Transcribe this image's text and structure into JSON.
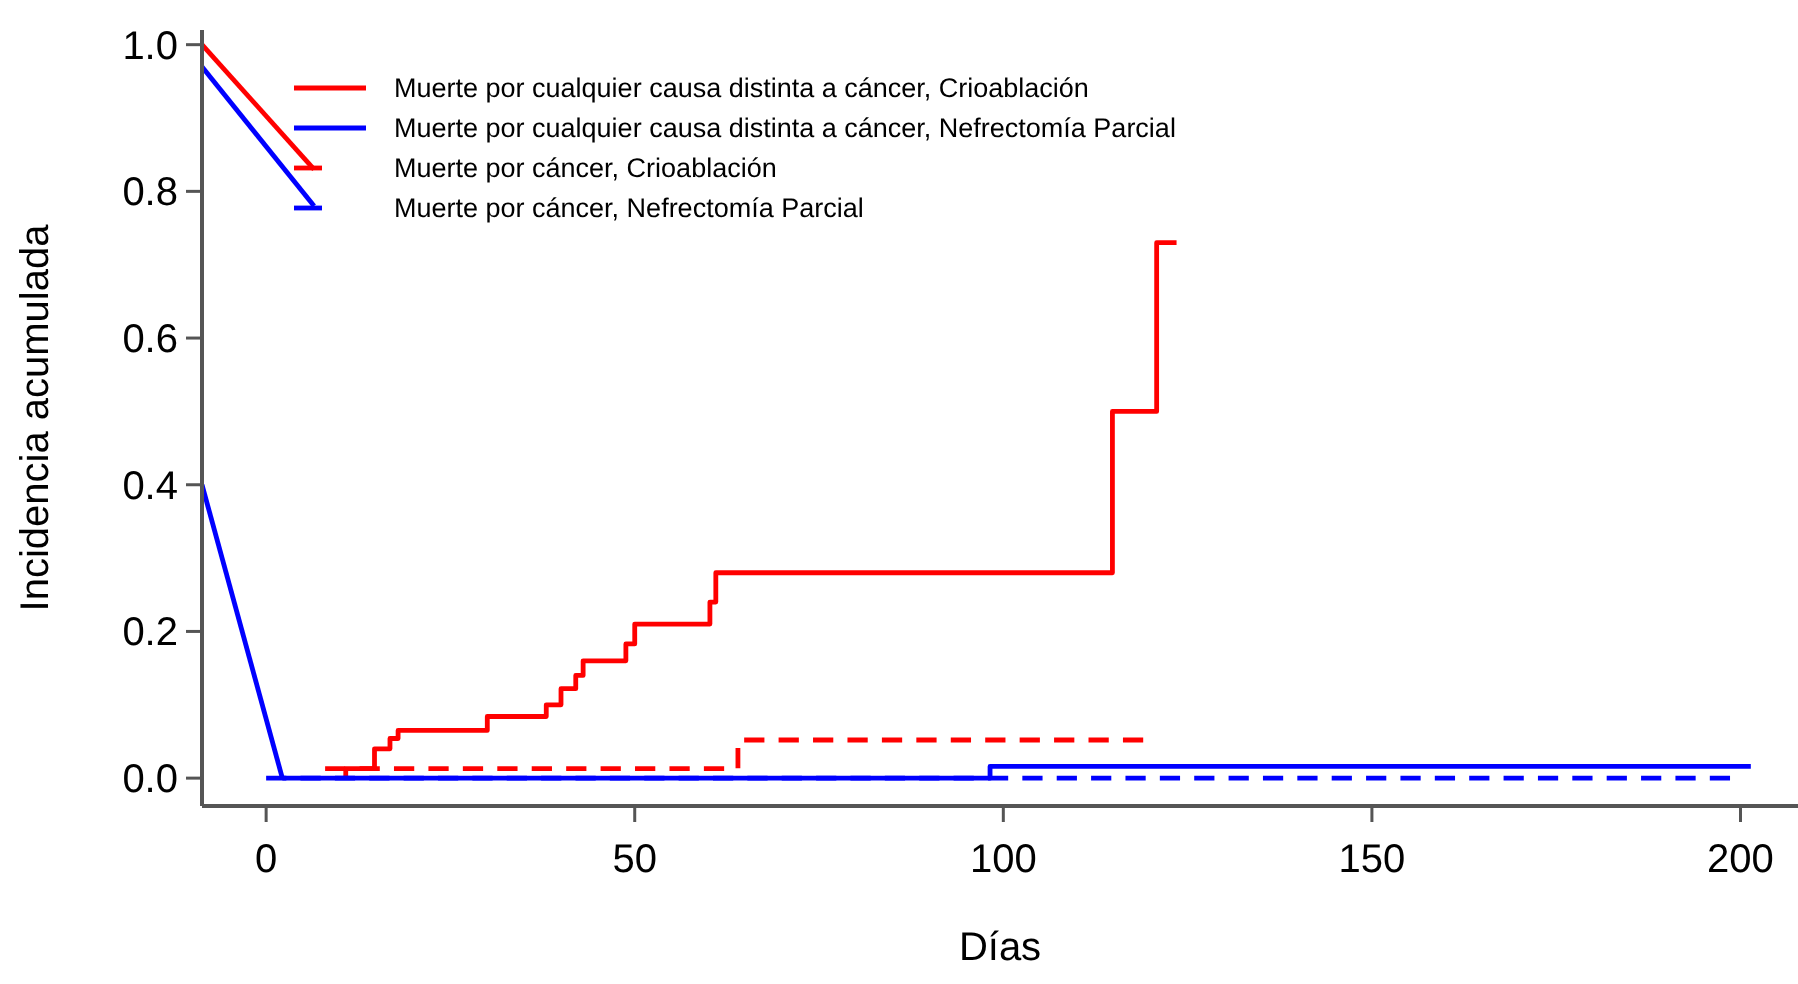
{
  "chart_data": {
    "type": "step",
    "xlabel": "Días",
    "ylabel": "Incidencia acumulada",
    "xlim": [
      -8.7,
      207.8
    ],
    "ylim": [
      -0.038,
      1.02
    ],
    "xticks": [
      0,
      50,
      100,
      150,
      200
    ],
    "yticks": [
      {
        "value": 0,
        "label": "0.0"
      },
      {
        "value": 0.2,
        "label": "0.2"
      },
      {
        "value": 0.4,
        "label": "0.4"
      },
      {
        "value": 0.6,
        "label": "0.6"
      },
      {
        "value": 0.8,
        "label": "0.8"
      },
      {
        "value": 1,
        "label": "1.0"
      }
    ],
    "grid": false,
    "legend": "top left",
    "series": [
      {
        "name": "Muerte por cualquier causa distinta a cáncer, Crioablación",
        "color": "#ff0000",
        "line_style": "solid",
        "x": [
          10.8,
          10.8,
          14.7,
          16.8,
          17.9,
          30,
          38,
          40,
          42,
          43,
          48.8,
          50,
          60.2,
          61,
          114.8,
          120.8,
          123.5
        ],
        "values": [
          0,
          0.013,
          0.04,
          0.054,
          0.065,
          0.084,
          0.1,
          0.122,
          0.14,
          0.16,
          0.183,
          0.21,
          0.24,
          0.28,
          0.5,
          0.73,
          0.73
        ]
      },
      {
        "name": "Muerte por cualquier causa distinta a cáncer, Nefrectomía Parcial",
        "color": "#0000ff",
        "line_style": "solid",
        "x": [
          2.2,
          98.2,
          201.4
        ],
        "values": [
          0,
          0.016,
          0.016
        ]
      },
      {
        "name": "Muerte por cáncer, Crioablación",
        "color": "#ff0000",
        "line_style": "dashed",
        "x": [
          8,
          64,
          119
        ],
        "values": [
          0.013,
          0.052,
          0.052
        ]
      },
      {
        "name": "Muerte por cáncer, Nefrectomía Parcial",
        "color": "#0000ff",
        "line_style": "dashed",
        "x": [
          0,
          198.6
        ],
        "values": [
          0,
          0
        ]
      },
      {
        "type": "line",
        "color": "#ff0000",
        "line_style": "solid",
        "x": [
          -8.7,
          6.5
        ],
        "values": [
          1.0,
          0.83
        ]
      },
      {
        "type": "line",
        "color": "#0000ff",
        "line_style": "solid",
        "x": [
          -8.7,
          6.5
        ],
        "values": [
          0.97,
          0.78
        ]
      },
      {
        "type": "line",
        "color": "#0000ff",
        "line_style": "solid",
        "x": [
          -8.7,
          2.2
        ],
        "values": [
          0.4,
          0
        ]
      }
    ]
  }
}
